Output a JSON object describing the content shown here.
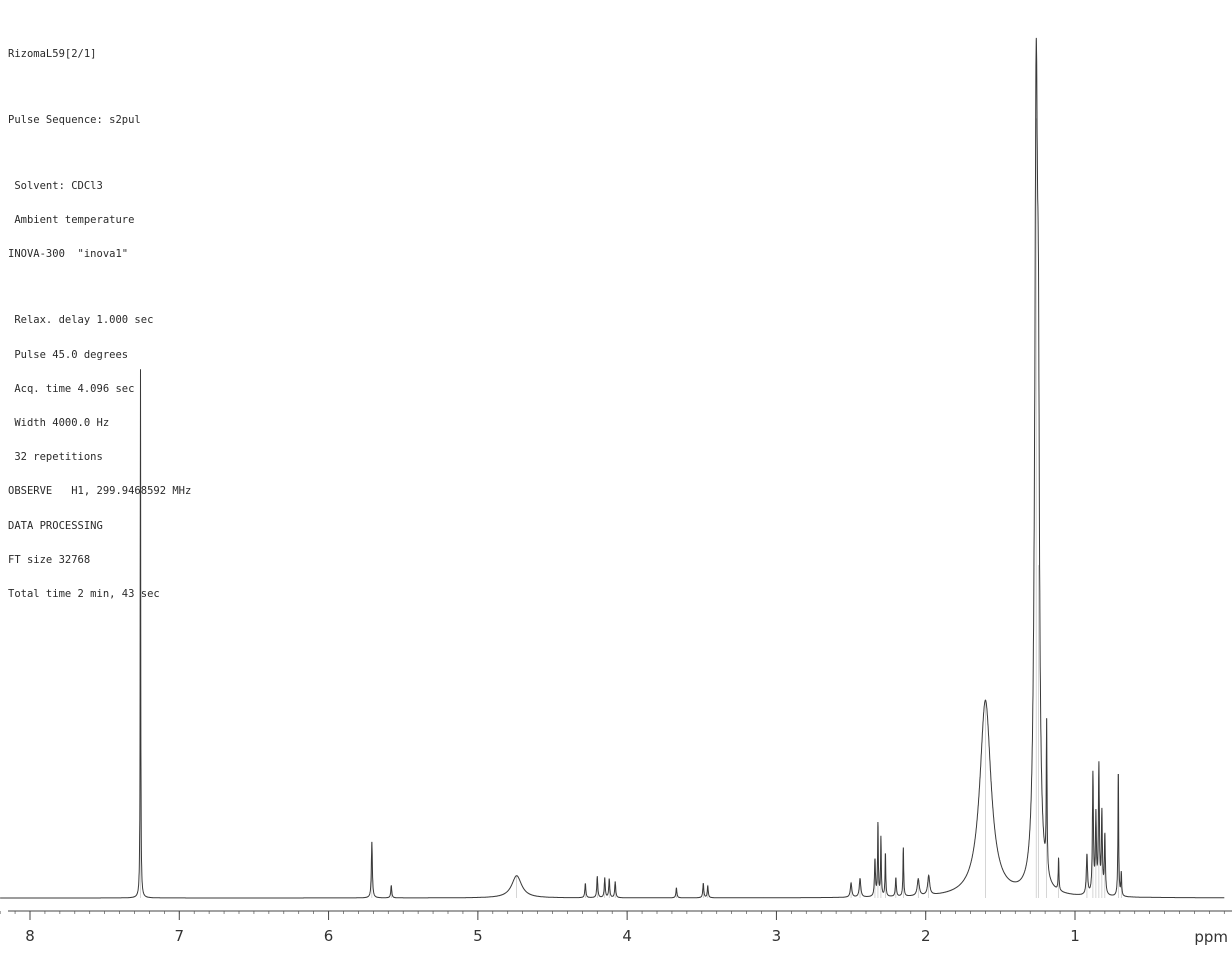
{
  "header": {
    "sample": "RizomaL59[2/1]",
    "pulse_sequence": "Pulse Sequence: s2pul",
    "solvent": " Solvent: CDCl3",
    "temperature": " Ambient temperature",
    "instrument": "INOVA-300  \"inova1\"",
    "relax_delay": " Relax. delay 1.000 sec",
    "pulse": " Pulse 45.0 degrees",
    "acq_time": " Acq. time 4.096 sec",
    "width": " Width 4000.0 Hz",
    "repetitions": " 32 repetitions",
    "observe": "OBSERVE   H1, 299.9468592 MHz",
    "data_processing": "DATA PROCESSING",
    "ft_size": "FT size 32768",
    "total_time": "Total time 2 min, 43 sec"
  },
  "chart_data": {
    "type": "line",
    "title": "",
    "xlabel": "ppm",
    "ylabel": "",
    "x_reversed": true,
    "xlim": [
      8.2,
      0.0
    ],
    "ylim": [
      0,
      100
    ],
    "x_ticks": [
      8,
      7,
      6,
      5,
      4,
      3,
      2,
      1
    ],
    "x_tick_labels": [
      "8",
      "7",
      "6",
      "5",
      "4",
      "3",
      "2",
      "1"
    ],
    "grid": false,
    "line_color": "#3a3a3a",
    "peaks": [
      {
        "ppm": 7.26,
        "height": 59.4,
        "width": 0.002
      },
      {
        "ppm": 5.71,
        "height": 6.3,
        "width": 0.004
      },
      {
        "ppm": 5.58,
        "height": 1.4,
        "width": 0.004
      },
      {
        "ppm": 4.74,
        "height": 2.5,
        "width": 0.04
      },
      {
        "ppm": 4.28,
        "height": 1.6,
        "width": 0.004
      },
      {
        "ppm": 4.2,
        "height": 2.4,
        "width": 0.004
      },
      {
        "ppm": 4.15,
        "height": 2.2,
        "width": 0.004
      },
      {
        "ppm": 4.12,
        "height": 2.1,
        "width": 0.004
      },
      {
        "ppm": 4.08,
        "height": 1.8,
        "width": 0.004
      },
      {
        "ppm": 3.67,
        "height": 1.1,
        "width": 0.004
      },
      {
        "ppm": 3.49,
        "height": 1.6,
        "width": 0.004
      },
      {
        "ppm": 3.46,
        "height": 1.3,
        "width": 0.004
      },
      {
        "ppm": 2.5,
        "height": 1.6,
        "width": 0.006
      },
      {
        "ppm": 2.44,
        "height": 2.1,
        "width": 0.006
      },
      {
        "ppm": 2.34,
        "height": 4.1,
        "width": 0.004
      },
      {
        "ppm": 2.32,
        "height": 8.1,
        "width": 0.003
      },
      {
        "ppm": 2.3,
        "height": 6.6,
        "width": 0.003
      },
      {
        "ppm": 2.27,
        "height": 4.8,
        "width": 0.003
      },
      {
        "ppm": 2.2,
        "height": 2.1,
        "width": 0.004
      },
      {
        "ppm": 2.15,
        "height": 5.5,
        "width": 0.003
      },
      {
        "ppm": 2.05,
        "height": 1.9,
        "width": 0.008
      },
      {
        "ppm": 1.98,
        "height": 2.2,
        "width": 0.008
      },
      {
        "ppm": 1.6,
        "height": 22.1,
        "width": 0.045
      },
      {
        "ppm": 1.26,
        "height": 87.6,
        "width": 0.012
      },
      {
        "ppm": 1.245,
        "height": 37.4,
        "width": 0.008
      },
      {
        "ppm": 1.19,
        "height": 16.9,
        "width": 0.003
      },
      {
        "ppm": 1.11,
        "height": 3.6,
        "width": 0.003
      },
      {
        "ppm": 0.92,
        "height": 4.5,
        "width": 0.005
      },
      {
        "ppm": 0.88,
        "height": 13.5,
        "width": 0.004
      },
      {
        "ppm": 0.86,
        "height": 8.6,
        "width": 0.004
      },
      {
        "ppm": 0.84,
        "height": 14.3,
        "width": 0.004
      },
      {
        "ppm": 0.82,
        "height": 9.0,
        "width": 0.004
      },
      {
        "ppm": 0.8,
        "height": 6.6,
        "width": 0.004
      },
      {
        "ppm": 0.71,
        "height": 13.9,
        "width": 0.003
      },
      {
        "ppm": 0.69,
        "height": 2.6,
        "width": 0.003
      }
    ]
  }
}
